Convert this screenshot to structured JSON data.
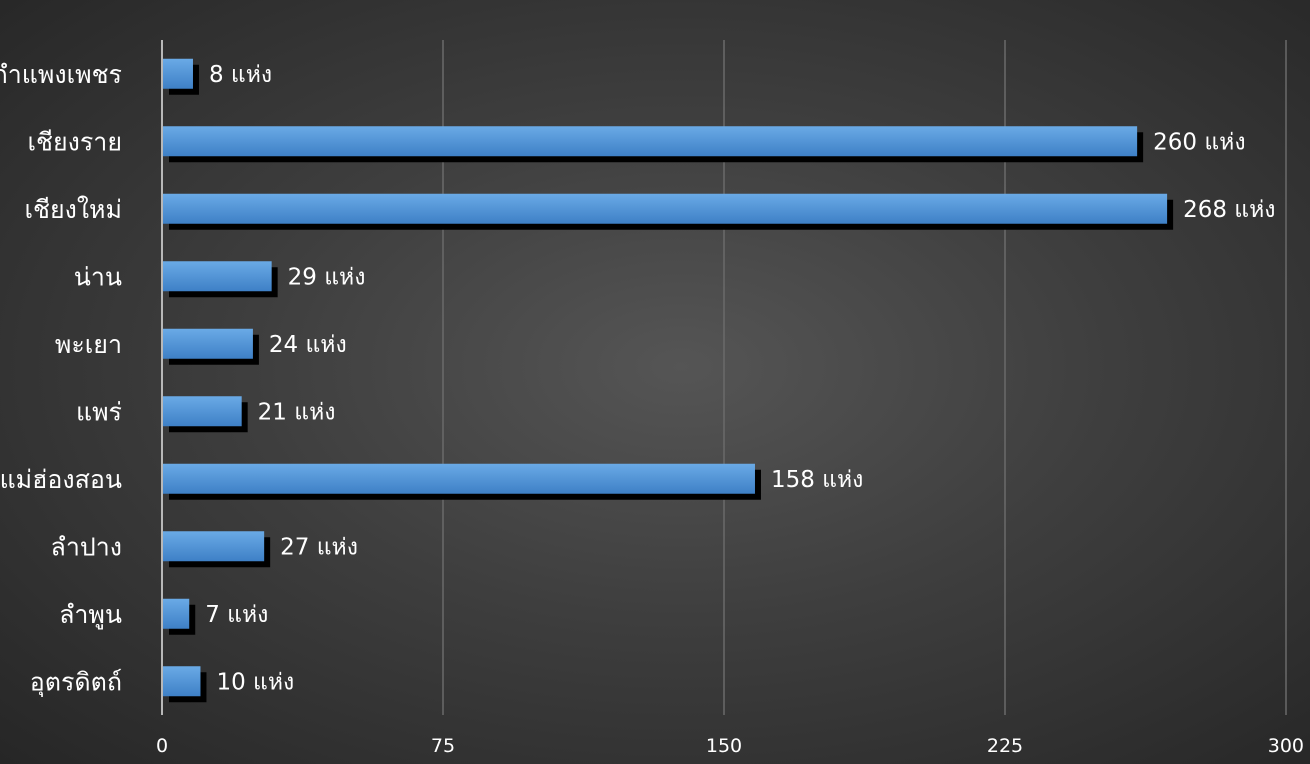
{
  "chart_data": {
    "type": "bar",
    "orientation": "horizontal",
    "title": "",
    "xlabel": "",
    "ylabel": "",
    "categories": [
      "กำแพงเพชร",
      "เชียงราย",
      "เชียงใหม่",
      "น่าน",
      "พะเยา",
      "แพร่",
      "แม่ฮ่องสอน",
      "ลำปาง",
      "ลำพูน",
      "อุตรดิตถ์"
    ],
    "values": [
      8,
      260,
      268,
      29,
      24,
      21,
      158,
      27,
      7,
      10
    ],
    "value_labels": [
      "8 แห่ง",
      "260 แห่ง",
      "268 แห่ง",
      "29 แห่ง",
      "24 แห่ง",
      "21 แห่ง",
      "158 แห่ง",
      "27 แห่ง",
      "7 แห่ง",
      "10 แห่ง"
    ],
    "xlim": [
      0,
      300
    ],
    "x_ticks": [
      0,
      75,
      150,
      225,
      300
    ],
    "grid": true,
    "legend": "none",
    "colors": {
      "bar_top": "#6aaae6",
      "bar_bottom": "#3e80c6",
      "shadow": "#000000",
      "grid": "#6a6a6a",
      "axis": "#b8b8b8",
      "text": "#ffffff"
    }
  }
}
